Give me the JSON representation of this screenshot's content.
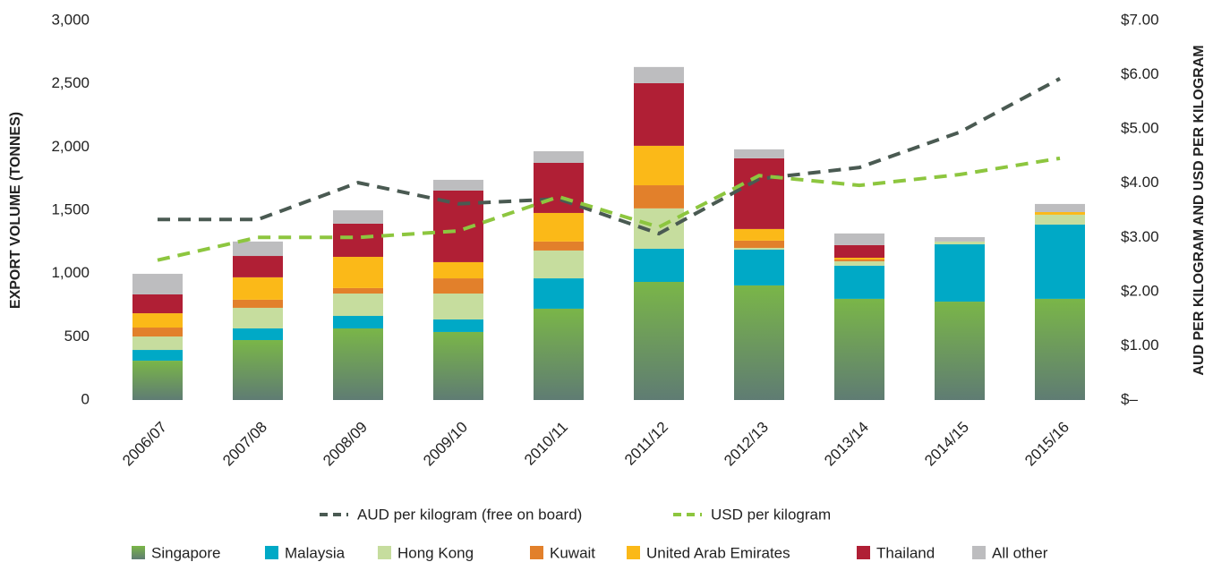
{
  "chart_data": {
    "type": "bar",
    "stacked": true,
    "ylabel": "EXPORT VOLUME (TONNES)",
    "y2label": "AUD PER KILOGRAM AND USD PER KILOGRAM",
    "categories": [
      "2006/07",
      "2007/08",
      "2008/09",
      "2009/10",
      "2010/11",
      "2011/12",
      "2012/13",
      "2013/14",
      "2014/15",
      "2015/16"
    ],
    "series": [
      {
        "name": "Singapore",
        "color": "#7ab648",
        "values": [
          311,
          474,
          566,
          538,
          722,
          934,
          906,
          800,
          778,
          800
        ]
      },
      {
        "name": "Malaysia",
        "color": "#00a9c6",
        "values": [
          85,
          92,
          99,
          99,
          240,
          262,
          283,
          262,
          453,
          587
        ]
      },
      {
        "name": "Hong Kong",
        "color": "#c6dd9e",
        "values": [
          106,
          163,
          177,
          205,
          220,
          319,
          14,
          35,
          22,
          78
        ]
      },
      {
        "name": "Kuwait",
        "color": "#e2802b",
        "values": [
          71,
          64,
          43,
          120,
          71,
          183,
          57,
          14,
          0,
          0
        ]
      },
      {
        "name": "United Arab Emirates",
        "color": "#fbb918",
        "values": [
          113,
          177,
          247,
          128,
          226,
          312,
          92,
          14,
          0,
          21
        ]
      },
      {
        "name": "Thailand",
        "color": "#b01f35",
        "values": [
          149,
          169,
          262,
          566,
          396,
          495,
          559,
          100,
          0,
          0
        ]
      },
      {
        "name": "All other",
        "color": "#bdbdbf",
        "values": [
          163,
          114,
          106,
          85,
          92,
          128,
          71,
          92,
          35,
          64
        ]
      },
      {
        "name": "AUD per kilogram (free on board)",
        "type": "line",
        "axis": "y2",
        "dashed": true,
        "color": "#4a5a52",
        "values": [
          3.33,
          3.33,
          4.01,
          3.62,
          3.71,
          3.07,
          4.08,
          4.29,
          4.94,
          5.93
        ]
      },
      {
        "name": "USD per kilogram",
        "type": "line",
        "axis": "y2",
        "dashed": true,
        "color": "#8dc63f",
        "values": [
          2.58,
          3.0,
          3.0,
          3.12,
          3.75,
          3.19,
          4.14,
          3.96,
          4.16,
          4.46
        ]
      }
    ],
    "ylim": [
      0,
      3000
    ],
    "yticks": [
      0,
      500,
      {
        "value": 1000,
        "label": "1,000"
      },
      {
        "value": 1500,
        "label": "1,500"
      },
      {
        "value": 2000,
        "label": "2,000"
      },
      {
        "value": 2500,
        "label": "2,500"
      },
      {
        "value": 3000,
        "label": "3,000"
      }
    ],
    "y2lim": [
      0,
      7
    ],
    "y2ticks": [
      {
        "value": 0,
        "label": "$–"
      },
      {
        "value": 1,
        "label": "$1.00"
      },
      {
        "value": 2,
        "label": "$2.00"
      },
      {
        "value": 3,
        "label": "$3.00"
      },
      {
        "value": 4,
        "label": "$4.00"
      },
      {
        "value": 5,
        "label": "$5.00"
      },
      {
        "value": 6,
        "label": "$6.00"
      },
      {
        "value": 7,
        "label": "$7.00"
      }
    ],
    "grid": false
  }
}
